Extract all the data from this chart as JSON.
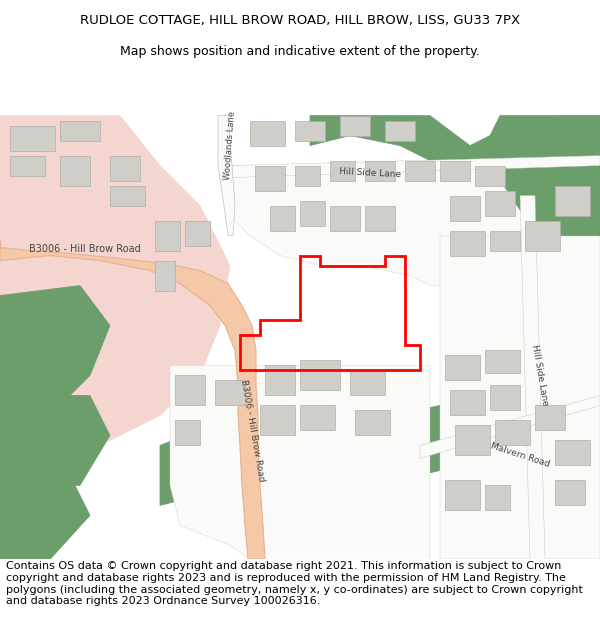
{
  "title_line1": "RUDLOE COTTAGE, HILL BROW ROAD, HILL BROW, LISS, GU33 7PX",
  "title_line2": "Map shows position and indicative extent of the property.",
  "footer_text": "Contains OS data © Crown copyright and database right 2021. This information is subject to Crown copyright and database rights 2023 and is reproduced with the permission of HM Land Registry. The polygons (including the associated geometry, namely x, y co-ordinates) are subject to Crown copyright and database rights 2023 Ordnance Survey 100026316.",
  "title_fontsize": 9.5,
  "footer_fontsize": 8.0,
  "bg_color": "#ffffff",
  "map_bg": "#f2f0eb",
  "green_color": "#6b9e6b",
  "road_color": "#f5c8a8",
  "road_edge_color": "#e8b090",
  "building_color": "#d0cec8",
  "building_edge_color": "#b0aea8",
  "plot_color": "#ff0000",
  "pink_area_color": "#f5d5d0",
  "white_area_color": "#fafaf8",
  "road_label_color": "#444444",
  "title_weight": "normal"
}
